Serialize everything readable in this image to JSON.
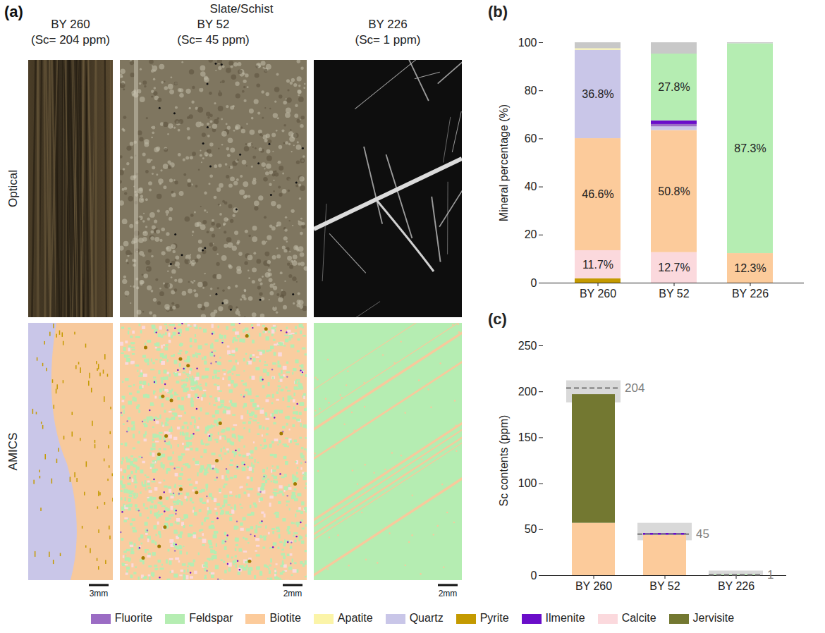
{
  "panel_a": {
    "label": "(a)",
    "group": "Slate/Schist",
    "rows": [
      "Optical",
      "AMICS"
    ],
    "columns": [
      {
        "sample": "BY 260",
        "sc": "(Sc= 204 ppm)",
        "scale_bar": "3mm"
      },
      {
        "sample": "BY 52",
        "sc": "(Sc= 45 ppm)",
        "scale_bar": "2mm"
      },
      {
        "sample": "BY 226",
        "sc": "(Sc= 1 ppm)",
        "scale_bar": "2mm"
      }
    ]
  },
  "legend": "bottom",
  "legend_items": [
    {
      "name": "Fluorite",
      "color": "#9b6cc4"
    },
    {
      "name": "Feldspar",
      "color": "#b5edb2"
    },
    {
      "name": "Biotite",
      "color": "#fccb9b"
    },
    {
      "name": "Apatite",
      "color": "#fbf4a8"
    },
    {
      "name": "Quartz",
      "color": "#c9c6e8"
    },
    {
      "name": "Pyrite",
      "color": "#c49a00"
    },
    {
      "name": "Ilmenite",
      "color": "#6a0dc9"
    },
    {
      "name": "Calcite",
      "color": "#fbd9dd"
    },
    {
      "name": "Jervisite",
      "color": "#737831"
    }
  ],
  "chart_data": [
    {
      "panel": "(b)",
      "type": "bar",
      "stacked": true,
      "data_labels": true,
      "ylabel": "Mineral percentage (%)",
      "categories": [
        "BY 260",
        "BY 52",
        "BY 226"
      ],
      "ylim": [
        0,
        100
      ],
      "yticks": [
        0,
        20,
        40,
        60,
        80,
        100
      ],
      "series": [
        {
          "name": "Pyrite",
          "color": "#c49a00",
          "values": [
            1.8,
            null,
            null
          ]
        },
        {
          "name": "Calcite",
          "color": "#fbd9dd",
          "values": [
            11.7,
            12.7,
            null
          ],
          "value_labels": [
            "11.7%",
            "12.7%",
            null
          ]
        },
        {
          "name": "Biotite",
          "color": "#fccb9b",
          "values": [
            46.6,
            50.8,
            12.3
          ],
          "value_labels": [
            "46.6%",
            "50.8%",
            "12.3%"
          ]
        },
        {
          "name": "Quartz",
          "color": "#c9c6e8",
          "values": [
            36.8,
            1.5,
            null
          ],
          "value_labels": [
            "36.8%",
            null,
            null
          ]
        },
        {
          "name": "Fluorite",
          "color": "#9b6cc4",
          "values": [
            null,
            1.0,
            null
          ]
        },
        {
          "name": "Ilmenite",
          "color": "#6a0dc9",
          "values": [
            null,
            1.5,
            null
          ]
        },
        {
          "name": "Apatite",
          "color": "#fbf4a8",
          "values": [
            0.6,
            null,
            null
          ]
        },
        {
          "name": "Feldspar",
          "color": "#b5edb2",
          "values": [
            null,
            27.8,
            87.3
          ],
          "value_labels": [
            null,
            "27.8%",
            "87.3%"
          ]
        },
        {
          "name": null,
          "color": "#c8c8c8",
          "values": [
            2.5,
            4.7,
            0.4
          ]
        }
      ]
    },
    {
      "panel": "(c)",
      "type": "bar",
      "stacked": true,
      "ylabel": "Sc contents (ppm)",
      "categories": [
        "BY 260",
        "BY 52",
        "BY 226"
      ],
      "ylim": [
        0,
        250
      ],
      "yticks": [
        0,
        50,
        100,
        150,
        200,
        250
      ],
      "series": [
        {
          "name": "Feldspar",
          "color": "#b5edb2",
          "values": [
            null,
            null,
            1
          ]
        },
        {
          "name": "Biotite",
          "color": "#fccb9b",
          "values": [
            57,
            44,
            null
          ]
        },
        {
          "name": "Ilmenite",
          "color": "#6a0dc9",
          "values": [
            null,
            2,
            null
          ]
        },
        {
          "name": "Jervisite",
          "color": "#737831",
          "values": [
            140,
            null,
            null
          ]
        }
      ],
      "measured": [
        204,
        45,
        1
      ],
      "measured_low": [
        188,
        38,
        0
      ],
      "measured_high": [
        212,
        57,
        5
      ]
    }
  ]
}
